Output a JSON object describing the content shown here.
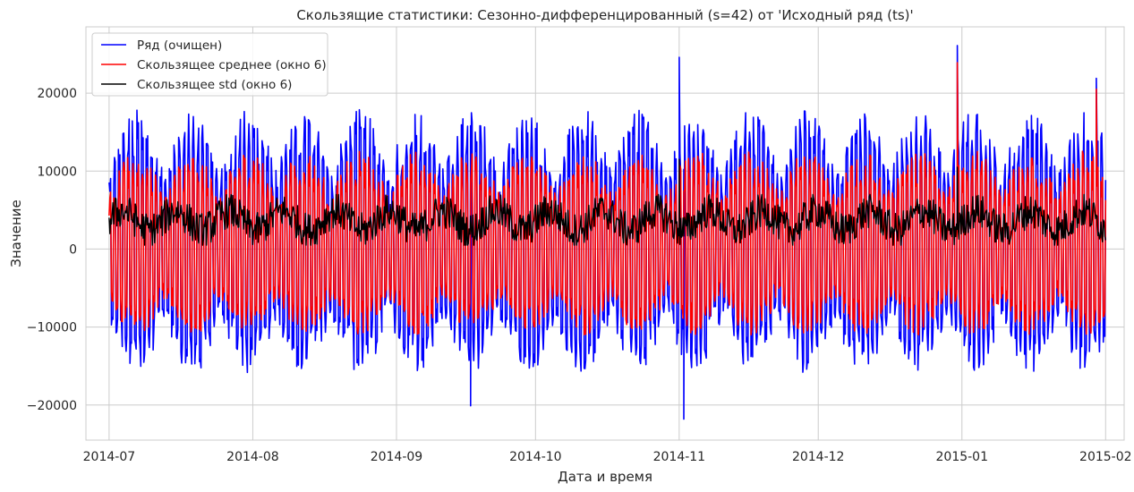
{
  "chart_data": {
    "type": "line",
    "title": "Скользящие статистики: Сезонно-дифференцированный (s=42) от 'Исходный ряд (ts)'",
    "xlabel": "Дата и время",
    "ylabel": "Значение",
    "x_range": [
      "2014-06-26",
      "2015-02-05"
    ],
    "ylim": [
      -24500,
      28500
    ],
    "x_ticks": [
      "2014-07",
      "2014-08",
      "2014-09",
      "2014-10",
      "2014-11",
      "2014-12",
      "2015-01",
      "2015-02"
    ],
    "y_ticks": [
      -20000,
      -10000,
      0,
      10000,
      20000
    ],
    "y_tick_labels": [
      "−20000",
      "−10000",
      "0",
      "10000",
      "20000"
    ],
    "grid": true,
    "legend_position": "top-left",
    "series": [
      {
        "name": "Ряд (очищен)",
        "color": "#0000ff",
        "typical_range": [
          -16000,
          18000
        ],
        "extremes": [
          {
            "date": "2014-09-17",
            "value": -20100
          },
          {
            "date": "2014-11-01",
            "value": 24600
          },
          {
            "date": "2014-11-02",
            "value": -21800
          },
          {
            "date": "2014-12-31",
            "value": 26100
          },
          {
            "date": "2015-01-30",
            "value": 21900
          }
        ]
      },
      {
        "name": "Скользящее среднее (окно 6)",
        "color": "#ff0000",
        "typical_range": [
          -13000,
          15000
        ],
        "extremes": [
          {
            "date": "2014-12-31",
            "value": 23900
          },
          {
            "date": "2015-01-30",
            "value": 20500
          }
        ]
      },
      {
        "name": "Скользящее std (окно 6)",
        "color": "#000000",
        "typical_range": [
          500,
          7000
        ],
        "extremes": [
          {
            "date": "2014-11-01",
            "value": 11500
          },
          {
            "date": "2014-12-31",
            "value": 10500
          }
        ]
      }
    ]
  }
}
